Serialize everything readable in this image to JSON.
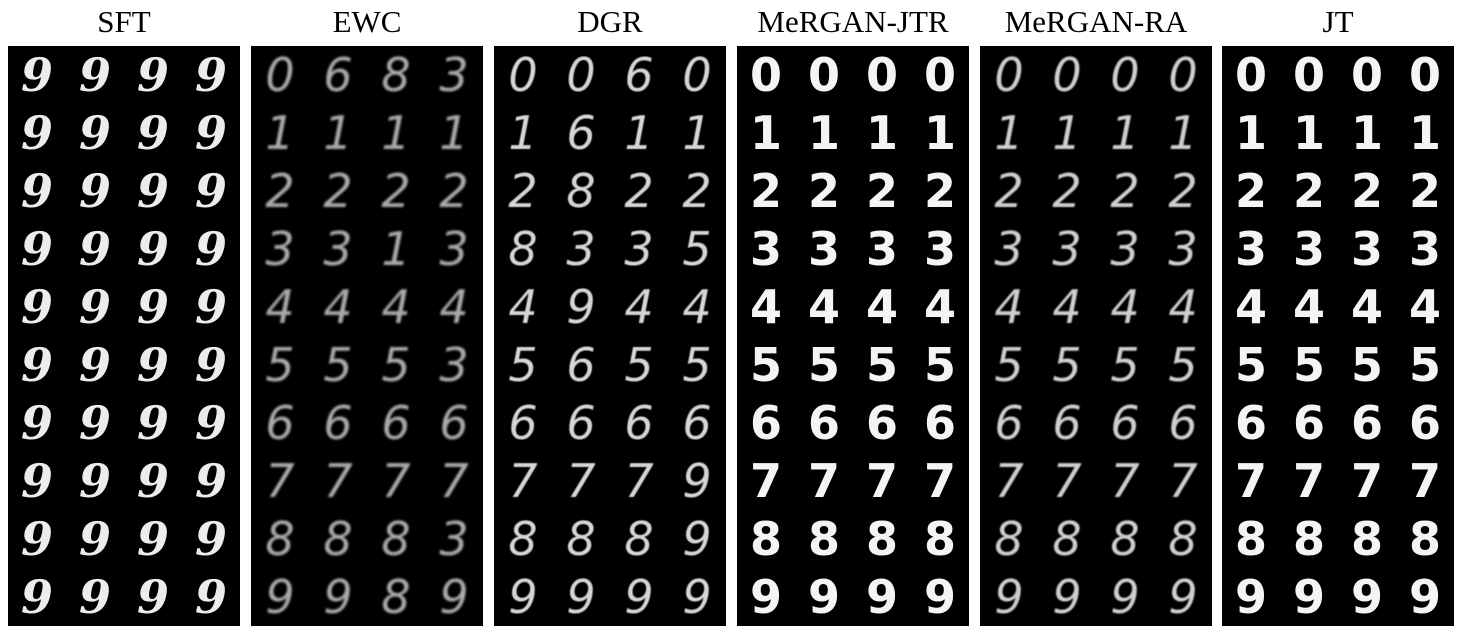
{
  "panels": [
    {
      "title": "SFT",
      "style": {
        "digit_font": "\"DejaVu Serif\", serif",
        "italic": true,
        "weight": "bold",
        "opacity": 0.97,
        "blur": 0.2
      },
      "rows": [
        [
          "9",
          "9",
          "9",
          "9"
        ],
        [
          "9",
          "9",
          "9",
          "9"
        ],
        [
          "9",
          "9",
          "9",
          "9"
        ],
        [
          "9",
          "9",
          "9",
          "9"
        ],
        [
          "9",
          "9",
          "9",
          "9"
        ],
        [
          "9",
          "9",
          "9",
          "9"
        ],
        [
          "9",
          "9",
          "9",
          "9"
        ],
        [
          "9",
          "9",
          "9",
          "9"
        ],
        [
          "9",
          "9",
          "9",
          "9"
        ],
        [
          "9",
          "9",
          "9",
          "9"
        ]
      ]
    },
    {
      "title": "EWC",
      "style": {
        "digit_font": "\"DejaVu Sans\", sans-serif",
        "italic": true,
        "weight": "normal",
        "opacity": 0.7,
        "blur": 1.0
      },
      "rows": [
        [
          "0",
          "6",
          "8",
          "3"
        ],
        [
          "1",
          "1",
          "1",
          "1"
        ],
        [
          "2",
          "2",
          "2",
          "2"
        ],
        [
          "3",
          "3",
          "1",
          "3"
        ],
        [
          "4",
          "4",
          "4",
          "4"
        ],
        [
          "5",
          "5",
          "5",
          "3"
        ],
        [
          "6",
          "6",
          "6",
          "6"
        ],
        [
          "7",
          "7",
          "7",
          "7"
        ],
        [
          "8",
          "8",
          "8",
          "3"
        ],
        [
          "9",
          "9",
          "8",
          "9"
        ]
      ]
    },
    {
      "title": "DGR",
      "style": {
        "digit_font": "\"DejaVu Sans\", sans-serif",
        "italic": true,
        "weight": "normal",
        "opacity": 0.88,
        "blur": 0.6
      },
      "rows": [
        [
          "0",
          "0",
          "6",
          "0"
        ],
        [
          "1",
          "6",
          "1",
          "1"
        ],
        [
          "2",
          "8",
          "2",
          "2"
        ],
        [
          "8",
          "3",
          "3",
          "5"
        ],
        [
          "4",
          "9",
          "4",
          "4"
        ],
        [
          "5",
          "6",
          "5",
          "5"
        ],
        [
          "6",
          "6",
          "6",
          "6"
        ],
        [
          "7",
          "7",
          "7",
          "9"
        ],
        [
          "8",
          "8",
          "8",
          "9"
        ],
        [
          "9",
          "9",
          "9",
          "9"
        ]
      ]
    },
    {
      "title": "MeRGAN-JTR",
      "style": {
        "digit_font": "\"DejaVu Sans\", sans-serif",
        "italic": false,
        "weight": "bold",
        "opacity": 1,
        "blur": 0.3
      },
      "rows": [
        [
          "0",
          "0",
          "0",
          "0"
        ],
        [
          "1",
          "1",
          "1",
          "1"
        ],
        [
          "2",
          "2",
          "2",
          "2"
        ],
        [
          "3",
          "3",
          "3",
          "3"
        ],
        [
          "4",
          "4",
          "4",
          "4"
        ],
        [
          "5",
          "5",
          "5",
          "5"
        ],
        [
          "6",
          "6",
          "6",
          "6"
        ],
        [
          "7",
          "7",
          "7",
          "7"
        ],
        [
          "8",
          "8",
          "8",
          "8"
        ],
        [
          "9",
          "9",
          "9",
          "9"
        ]
      ]
    },
    {
      "title": "MeRGAN-RA",
      "style": {
        "digit_font": "\"DejaVu Sans\", sans-serif",
        "italic": true,
        "weight": "normal",
        "opacity": 0.85,
        "blur": 0.7
      },
      "rows": [
        [
          "0",
          "0",
          "0",
          "0"
        ],
        [
          "1",
          "1",
          "1",
          "1"
        ],
        [
          "2",
          "2",
          "2",
          "2"
        ],
        [
          "3",
          "3",
          "3",
          "3"
        ],
        [
          "4",
          "4",
          "4",
          "4"
        ],
        [
          "5",
          "5",
          "5",
          "5"
        ],
        [
          "6",
          "6",
          "6",
          "6"
        ],
        [
          "7",
          "7",
          "7",
          "7"
        ],
        [
          "8",
          "8",
          "8",
          "8"
        ],
        [
          "9",
          "9",
          "9",
          "9"
        ]
      ]
    },
    {
      "title": "JT",
      "style": {
        "digit_font": "\"DejaVu Sans\", sans-serif",
        "italic": false,
        "weight": "bold",
        "opacity": 1,
        "blur": 0.2
      },
      "rows": [
        [
          "0",
          "0",
          "0",
          "0"
        ],
        [
          "1",
          "1",
          "1",
          "1"
        ],
        [
          "2",
          "2",
          "2",
          "2"
        ],
        [
          "3",
          "3",
          "3",
          "3"
        ],
        [
          "4",
          "4",
          "4",
          "4"
        ],
        [
          "5",
          "5",
          "5",
          "5"
        ],
        [
          "6",
          "6",
          "6",
          "6"
        ],
        [
          "7",
          "7",
          "7",
          "7"
        ],
        [
          "8",
          "8",
          "8",
          "8"
        ],
        [
          "9",
          "9",
          "9",
          "9"
        ]
      ]
    }
  ]
}
